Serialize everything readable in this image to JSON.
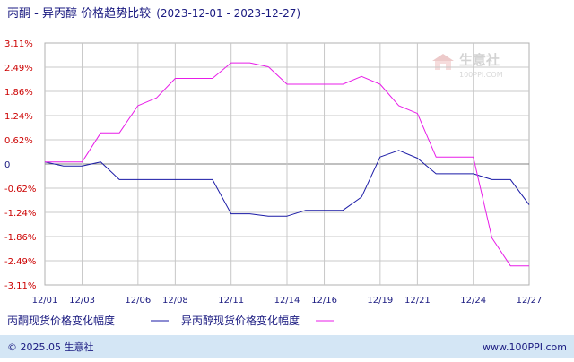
{
  "title": {
    "main": "丙酮 - 异丙醇 价格趋势比较",
    "range": "(2023-12-01 - 2023-12-27)"
  },
  "watermark": {
    "text_cn": "生意社",
    "text_en": "100PPI.COM"
  },
  "footer": {
    "left": "© 2025.05 生意社",
    "right": "www.100PPI.com"
  },
  "colors": {
    "series_blue": "#1a1aa6",
    "series_magenta": "#e81de8",
    "axis_text": "#1a1a80",
    "tick_red": "#cc0000",
    "grid": "#c8c8c8",
    "footer_bar": "#d4e6f5"
  },
  "chart_data": {
    "type": "line",
    "title": "丙酮 - 异丙醇 价格趋势比较",
    "subtitle": "(2023-12-01 - 2023-12-27)",
    "xlabel": "",
    "ylabel": "",
    "x_ticks": [
      "12/01",
      "12/03",
      "12/06",
      "12/08",
      "12/11",
      "12/14",
      "12/16",
      "12/19",
      "12/21",
      "12/24",
      "12/27"
    ],
    "y_ticks": [
      "3.11%",
      "2.49%",
      "1.86%",
      "1.24%",
      "0.62%",
      "0",
      "-0.62%",
      "-1.24%",
      "-1.86%",
      "-2.49%",
      "-3.11%"
    ],
    "ylim": [
      -3.11,
      3.11
    ],
    "grid": true,
    "legend_position": "bottom",
    "series": [
      {
        "name": "丙酮现货价格变化幅度",
        "color": "#1a1aa6",
        "x": [
          "12/01",
          "12/02",
          "12/03",
          "12/04",
          "12/05",
          "12/06",
          "12/07",
          "12/08",
          "12/09",
          "12/10",
          "12/11",
          "12/12",
          "12/13",
          "12/14",
          "12/15",
          "12/16",
          "12/17",
          "12/18",
          "12/19",
          "12/20",
          "12/21",
          "12/22",
          "12/23",
          "12/24",
          "12/25",
          "12/26",
          "12/27"
        ],
        "values": [
          0.05,
          -0.05,
          -0.05,
          0.05,
          -0.4,
          -0.4,
          -0.4,
          -0.4,
          -0.4,
          -0.4,
          -1.28,
          -1.28,
          -1.34,
          -1.34,
          -1.19,
          -1.19,
          -1.19,
          -0.85,
          0.18,
          0.35,
          0.15,
          -0.25,
          -0.25,
          -0.25,
          -0.4,
          -0.4,
          -1.05
        ]
      },
      {
        "name": "异丙醇现货价格变化幅度",
        "color": "#e81de8",
        "x": [
          "12/01",
          "12/02",
          "12/03",
          "12/04",
          "12/05",
          "12/06",
          "12/07",
          "12/08",
          "12/09",
          "12/10",
          "12/11",
          "12/12",
          "12/13",
          "12/14",
          "12/15",
          "12/16",
          "12/17",
          "12/18",
          "12/19",
          "12/20",
          "12/21",
          "12/22",
          "12/23",
          "12/24",
          "12/25",
          "12/26",
          "12/27"
        ],
        "values": [
          0.05,
          0.05,
          0.05,
          0.8,
          0.8,
          1.5,
          1.7,
          2.2,
          2.2,
          2.2,
          2.6,
          2.6,
          2.5,
          2.05,
          2.05,
          2.05,
          2.05,
          2.25,
          2.05,
          1.5,
          1.3,
          0.18,
          0.18,
          0.18,
          -1.9,
          -2.62,
          -2.62
        ]
      }
    ]
  }
}
